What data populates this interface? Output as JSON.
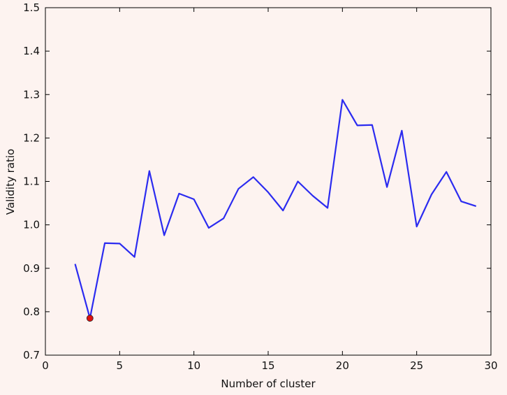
{
  "chart_data": {
    "type": "line",
    "title": "",
    "xlabel": "Number of cluster",
    "ylabel": "Validity ratio",
    "xlim": [
      0,
      30
    ],
    "ylim": [
      0.7,
      1.5
    ],
    "x_ticks": [
      0,
      5,
      10,
      15,
      20,
      25,
      30
    ],
    "x_tick_labels": [
      "0",
      "5",
      "10",
      "15",
      "20",
      "25",
      "30"
    ],
    "y_ticks": [
      0.7,
      0.8,
      0.9,
      1.0,
      1.1,
      1.2,
      1.3,
      1.4,
      1.5
    ],
    "y_tick_labels": [
      "0.7",
      "0.8",
      "0.9",
      "1.0",
      "1.1",
      "1.2",
      "1.3",
      "1.4",
      "1.5"
    ],
    "grid": false,
    "legend": "none",
    "series": [
      {
        "color": "#2b2bf0",
        "x": [
          2,
          3,
          4,
          5,
          6,
          7,
          8,
          9,
          10,
          11,
          12,
          13,
          14,
          15,
          16,
          17,
          18,
          19,
          20,
          21,
          22,
          23,
          24,
          25,
          26,
          27,
          28,
          29
        ],
        "y": [
          0.91,
          0.785,
          0.958,
          0.957,
          0.926,
          1.124,
          0.976,
          1.072,
          1.059,
          0.993,
          1.015,
          1.083,
          1.11,
          1.075,
          1.033,
          1.1,
          1.067,
          1.039,
          1.288,
          1.229,
          1.23,
          1.087,
          1.217,
          0.996,
          1.07,
          1.122,
          1.054,
          1.043
        ]
      }
    ],
    "highlight_point": {
      "x": 3,
      "y": 0.785,
      "color": "#dd1111"
    }
  }
}
